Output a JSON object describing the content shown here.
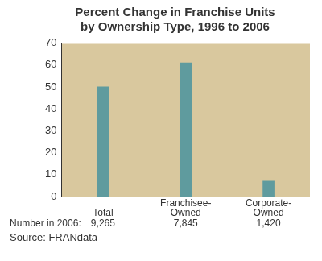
{
  "chart_data": {
    "type": "bar",
    "title": [
      "Percent Change in Franchise Units",
      "by Ownership Type, 1996 to 2006"
    ],
    "categories": [
      "Total",
      "Franchisee-Owned",
      "Corporate-Owned"
    ],
    "values": [
      50,
      61,
      7
    ],
    "color": "#5f9b9e",
    "ylim": [
      0,
      70
    ],
    "yticks": [
      0,
      10,
      20,
      30,
      40,
      50,
      60,
      70
    ],
    "grid": false,
    "counts_label": "Number in 2006:",
    "counts": [
      {
        "value": 9265,
        "label": "9,265"
      },
      {
        "value": 7845,
        "label": "7,845"
      },
      {
        "value": 1420,
        "label": "1,420"
      }
    ],
    "source": "Source: FRANdata"
  }
}
